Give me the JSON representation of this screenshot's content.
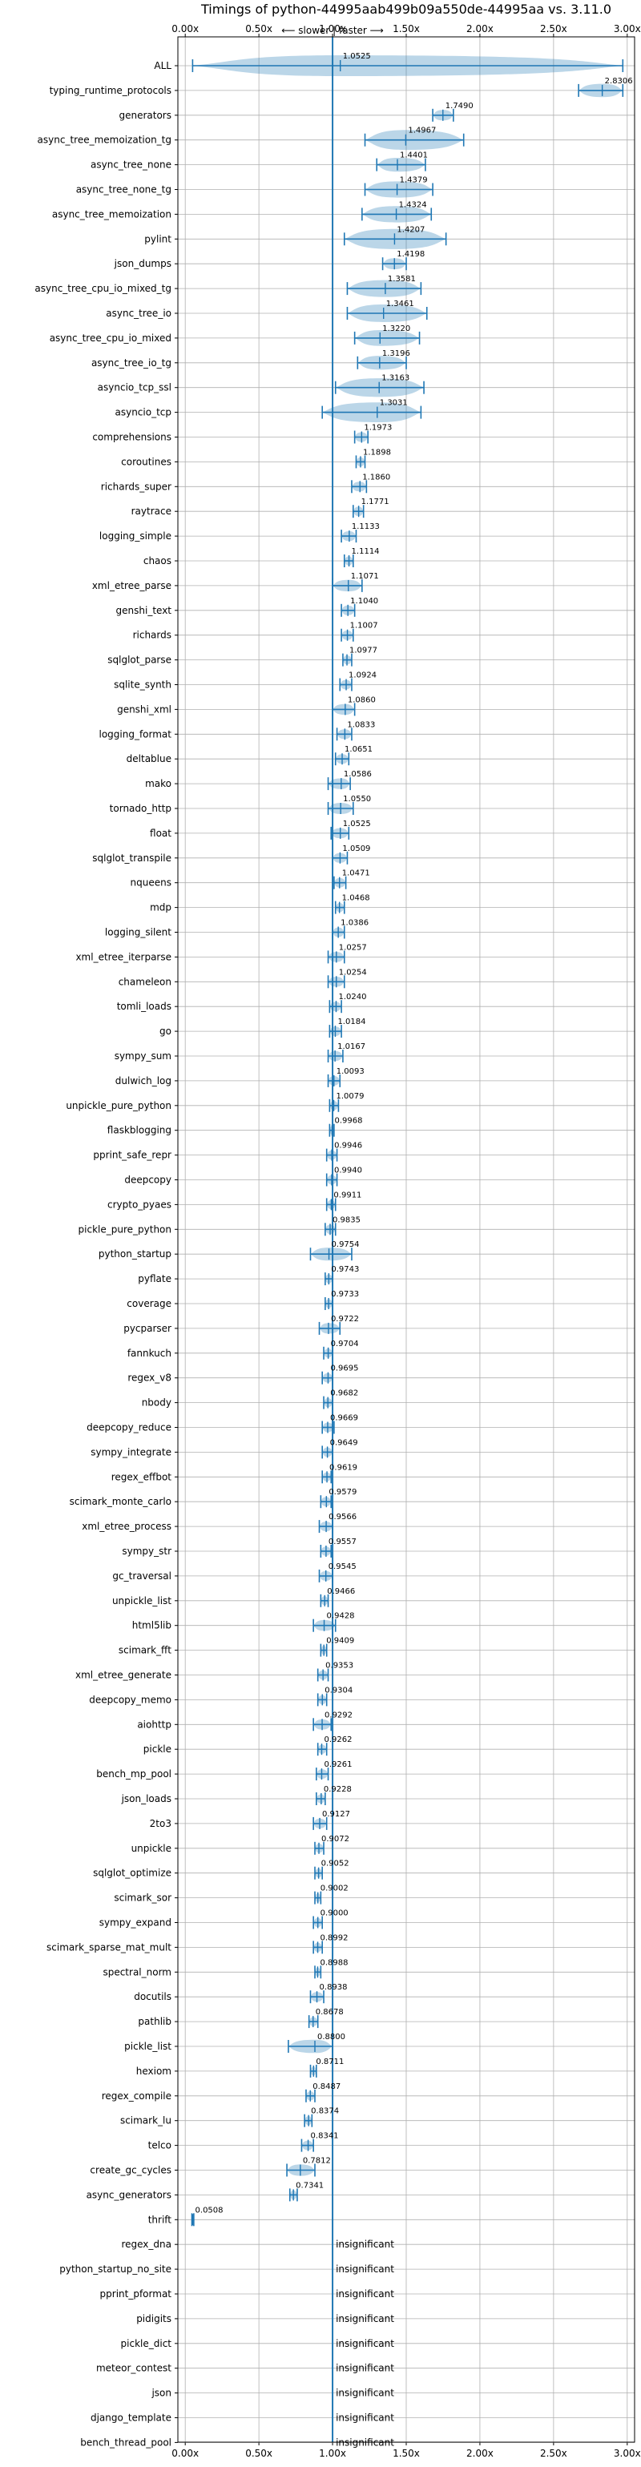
{
  "chart_data": {
    "type": "violin",
    "title": "Timings of python-44995aab499b09a550de-44995aa vs. 3.11.0",
    "direction_label": "⟵ slower | faster ⟶",
    "xlim": [
      -0.05,
      3.05
    ],
    "x_ticks": [
      0.0,
      0.5,
      1.0,
      1.5,
      2.0,
      2.5,
      3.0
    ],
    "x_tick_labels": [
      "0.00x",
      "0.50x",
      "1.00x",
      "1.50x",
      "2.00x",
      "2.50x",
      "3.00x"
    ],
    "grid": true,
    "reference_line": 1.0,
    "insignificant_label": "insignificant",
    "colors": {
      "violin": "#1f77b4",
      "median_line": "#1f77b4",
      "highlight": "#d62728"
    },
    "benchmarks": [
      {
        "name": "ALL",
        "value": 1.0525,
        "label": "1.0525",
        "lo": 0.05,
        "hi": 2.97
      },
      {
        "name": "typing_runtime_protocols",
        "value": 2.8306,
        "label": "2.8306",
        "lo": 2.67,
        "hi": 2.97
      },
      {
        "name": "generators",
        "value": 1.749,
        "label": "1.7490",
        "lo": 1.68,
        "hi": 1.82
      },
      {
        "name": "async_tree_memoization_tg",
        "value": 1.4967,
        "label": "1.4967",
        "lo": 1.22,
        "hi": 1.89
      },
      {
        "name": "async_tree_none",
        "value": 1.4401,
        "label": "1.4401",
        "lo": 1.3,
        "hi": 1.63
      },
      {
        "name": "async_tree_none_tg",
        "value": 1.4379,
        "label": "1.4379",
        "lo": 1.22,
        "hi": 1.68
      },
      {
        "name": "async_tree_memoization",
        "value": 1.4324,
        "label": "1.4324",
        "lo": 1.2,
        "hi": 1.67
      },
      {
        "name": "pylint",
        "value": 1.4207,
        "label": "1.4207",
        "lo": 1.08,
        "hi": 1.77
      },
      {
        "name": "json_dumps",
        "value": 1.4198,
        "label": "1.4198",
        "lo": 1.34,
        "hi": 1.5
      },
      {
        "name": "async_tree_cpu_io_mixed_tg",
        "value": 1.3581,
        "label": "1.3581",
        "lo": 1.1,
        "hi": 1.6
      },
      {
        "name": "async_tree_io",
        "value": 1.3461,
        "label": "1.3461",
        "lo": 1.1,
        "hi": 1.64
      },
      {
        "name": "async_tree_cpu_io_mixed",
        "value": 1.322,
        "label": "1.3220",
        "lo": 1.15,
        "hi": 1.59
      },
      {
        "name": "async_tree_io_tg",
        "value": 1.3196,
        "label": "1.3196",
        "lo": 1.17,
        "hi": 1.5
      },
      {
        "name": "asyncio_tcp_ssl",
        "value": 1.3163,
        "label": "1.3163",
        "lo": 1.02,
        "hi": 1.62
      },
      {
        "name": "asyncio_tcp",
        "value": 1.3031,
        "label": "1.3031",
        "lo": 0.93,
        "hi": 1.6
      },
      {
        "name": "comprehensions",
        "value": 1.1973,
        "label": "1.1973",
        "lo": 1.15,
        "hi": 1.24
      },
      {
        "name": "coroutines",
        "value": 1.1898,
        "label": "1.1898",
        "lo": 1.16,
        "hi": 1.22
      },
      {
        "name": "richards_super",
        "value": 1.186,
        "label": "1.1860",
        "lo": 1.13,
        "hi": 1.23
      },
      {
        "name": "raytrace",
        "value": 1.1771,
        "label": "1.1771",
        "lo": 1.14,
        "hi": 1.21
      },
      {
        "name": "logging_simple",
        "value": 1.1133,
        "label": "1.1133",
        "lo": 1.06,
        "hi": 1.16
      },
      {
        "name": "chaos",
        "value": 1.1114,
        "label": "1.1114",
        "lo": 1.08,
        "hi": 1.14
      },
      {
        "name": "xml_etree_parse",
        "value": 1.1071,
        "label": "1.1071",
        "lo": 1.0,
        "hi": 1.2
      },
      {
        "name": "genshi_text",
        "value": 1.104,
        "label": "1.1040",
        "lo": 1.06,
        "hi": 1.15
      },
      {
        "name": "richards",
        "value": 1.1007,
        "label": "1.1007",
        "lo": 1.06,
        "hi": 1.14
      },
      {
        "name": "sqlglot_parse",
        "value": 1.0977,
        "label": "1.0977",
        "lo": 1.07,
        "hi": 1.13
      },
      {
        "name": "sqlite_synth",
        "value": 1.0924,
        "label": "1.0924",
        "lo": 1.05,
        "hi": 1.13
      },
      {
        "name": "genshi_xml",
        "value": 1.086,
        "label": "1.0860",
        "lo": 1.0,
        "hi": 1.15
      },
      {
        "name": "logging_format",
        "value": 1.0833,
        "label": "1.0833",
        "lo": 1.03,
        "hi": 1.13
      },
      {
        "name": "deltablue",
        "value": 1.0651,
        "label": "1.0651",
        "lo": 1.02,
        "hi": 1.11
      },
      {
        "name": "mako",
        "value": 1.0586,
        "label": "1.0586",
        "lo": 0.97,
        "hi": 1.12
      },
      {
        "name": "tornado_http",
        "value": 1.055,
        "label": "1.0550",
        "lo": 0.97,
        "hi": 1.14
      },
      {
        "name": "float",
        "value": 1.0525,
        "label": "1.0525",
        "lo": 0.99,
        "hi": 1.11
      },
      {
        "name": "sqlglot_transpile",
        "value": 1.0509,
        "label": "1.0509",
        "lo": 1.0,
        "hi": 1.1
      },
      {
        "name": "nqueens",
        "value": 1.0471,
        "label": "1.0471",
        "lo": 1.01,
        "hi": 1.09
      },
      {
        "name": "mdp",
        "value": 1.0468,
        "label": "1.0468",
        "lo": 1.02,
        "hi": 1.08
      },
      {
        "name": "logging_silent",
        "value": 1.0386,
        "label": "1.0386",
        "lo": 1.0,
        "hi": 1.08
      },
      {
        "name": "xml_etree_iterparse",
        "value": 1.0257,
        "label": "1.0257",
        "lo": 0.97,
        "hi": 1.08
      },
      {
        "name": "chameleon",
        "value": 1.0254,
        "label": "1.0254",
        "lo": 0.97,
        "hi": 1.08
      },
      {
        "name": "tomli_loads",
        "value": 1.024,
        "label": "1.0240",
        "lo": 0.98,
        "hi": 1.06
      },
      {
        "name": "go",
        "value": 1.0184,
        "label": "1.0184",
        "lo": 0.98,
        "hi": 1.06
      },
      {
        "name": "sympy_sum",
        "value": 1.0167,
        "label": "1.0167",
        "lo": 0.97,
        "hi": 1.07
      },
      {
        "name": "dulwich_log",
        "value": 1.0093,
        "label": "1.0093",
        "lo": 0.97,
        "hi": 1.05
      },
      {
        "name": "unpickle_pure_python",
        "value": 1.0079,
        "label": "1.0079",
        "lo": 0.98,
        "hi": 1.04
      },
      {
        "name": "flaskblogging",
        "value": 0.9968,
        "label": "0.9968",
        "lo": 0.98,
        "hi": 1.01
      },
      {
        "name": "pprint_safe_repr",
        "value": 0.9946,
        "label": "0.9946",
        "lo": 0.96,
        "hi": 1.03
      },
      {
        "name": "deepcopy",
        "value": 0.994,
        "label": "0.9940",
        "lo": 0.96,
        "hi": 1.03
      },
      {
        "name": "crypto_pyaes",
        "value": 0.9911,
        "label": "0.9911",
        "lo": 0.96,
        "hi": 1.02
      },
      {
        "name": "pickle_pure_python",
        "value": 0.9835,
        "label": "0.9835",
        "lo": 0.95,
        "hi": 1.02
      },
      {
        "name": "python_startup",
        "value": 0.9754,
        "label": "0.9754",
        "lo": 0.85,
        "hi": 1.13
      },
      {
        "name": "pyflate",
        "value": 0.9743,
        "label": "0.9743",
        "lo": 0.95,
        "hi": 1.0
      },
      {
        "name": "coverage",
        "value": 0.9733,
        "label": "0.9733",
        "lo": 0.95,
        "hi": 1.0
      },
      {
        "name": "pycparser",
        "value": 0.9722,
        "label": "0.9722",
        "lo": 0.91,
        "hi": 1.05
      },
      {
        "name": "fannkuch",
        "value": 0.9704,
        "label": "0.9704",
        "lo": 0.94,
        "hi": 1.0
      },
      {
        "name": "regex_v8",
        "value": 0.9695,
        "label": "0.9695",
        "lo": 0.93,
        "hi": 1.0
      },
      {
        "name": "nbody",
        "value": 0.9682,
        "label": "0.9682",
        "lo": 0.94,
        "hi": 1.0
      },
      {
        "name": "deepcopy_reduce",
        "value": 0.9669,
        "label": "0.9669",
        "lo": 0.93,
        "hi": 1.01
      },
      {
        "name": "sympy_integrate",
        "value": 0.9649,
        "label": "0.9649",
        "lo": 0.93,
        "hi": 1.0
      },
      {
        "name": "regex_effbot",
        "value": 0.9619,
        "label": "0.9619",
        "lo": 0.93,
        "hi": 0.99
      },
      {
        "name": "scimark_monte_carlo",
        "value": 0.9579,
        "label": "0.9579",
        "lo": 0.92,
        "hi": 0.99
      },
      {
        "name": "xml_etree_process",
        "value": 0.9566,
        "label": "0.9566",
        "lo": 0.91,
        "hi": 1.0
      },
      {
        "name": "sympy_str",
        "value": 0.9557,
        "label": "0.9557",
        "lo": 0.92,
        "hi": 0.99
      },
      {
        "name": "gc_traversal",
        "value": 0.9545,
        "label": "0.9545",
        "lo": 0.91,
        "hi": 1.0
      },
      {
        "name": "unpickle_list",
        "value": 0.9466,
        "label": "0.9466",
        "lo": 0.92,
        "hi": 0.97
      },
      {
        "name": "html5lib",
        "value": 0.9428,
        "label": "0.9428",
        "lo": 0.87,
        "hi": 1.02
      },
      {
        "name": "scimark_fft",
        "value": 0.9409,
        "label": "0.9409",
        "lo": 0.92,
        "hi": 0.96
      },
      {
        "name": "xml_etree_generate",
        "value": 0.9353,
        "label": "0.9353",
        "lo": 0.9,
        "hi": 0.97
      },
      {
        "name": "deepcopy_memo",
        "value": 0.9304,
        "label": "0.9304",
        "lo": 0.9,
        "hi": 0.96
      },
      {
        "name": "aiohttp",
        "value": 0.9292,
        "label": "0.9292",
        "lo": 0.87,
        "hi": 0.99
      },
      {
        "name": "pickle",
        "value": 0.9262,
        "label": "0.9262",
        "lo": 0.9,
        "hi": 0.96
      },
      {
        "name": "bench_mp_pool",
        "value": 0.9261,
        "label": "0.9261",
        "lo": 0.89,
        "hi": 0.97
      },
      {
        "name": "json_loads",
        "value": 0.9228,
        "label": "0.9228",
        "lo": 0.89,
        "hi": 0.95
      },
      {
        "name": "2to3",
        "value": 0.9127,
        "label": "0.9127",
        "lo": 0.87,
        "hi": 0.96
      },
      {
        "name": "unpickle",
        "value": 0.9072,
        "label": "0.9072",
        "lo": 0.88,
        "hi": 0.94
      },
      {
        "name": "sqlglot_optimize",
        "value": 0.9052,
        "label": "0.9052",
        "lo": 0.88,
        "hi": 0.93
      },
      {
        "name": "scimark_sor",
        "value": 0.9002,
        "label": "0.9002",
        "lo": 0.88,
        "hi": 0.92
      },
      {
        "name": "sympy_expand",
        "value": 0.9,
        "label": "0.9000",
        "lo": 0.87,
        "hi": 0.93
      },
      {
        "name": "scimark_sparse_mat_mult",
        "value": 0.8992,
        "label": "0.8992",
        "lo": 0.87,
        "hi": 0.93
      },
      {
        "name": "spectral_norm",
        "value": 0.8988,
        "label": "0.8988",
        "lo": 0.88,
        "hi": 0.92
      },
      {
        "name": "docutils",
        "value": 0.8938,
        "label": "0.8938",
        "lo": 0.85,
        "hi": 0.94
      },
      {
        "name": "pathlib",
        "value": 0.8678,
        "label": "0.8678",
        "lo": 0.84,
        "hi": 0.9
      },
      {
        "name": "pickle_list",
        "value": 0.88,
        "label": "0.8800",
        "lo": 0.7,
        "hi": 1.0
      },
      {
        "name": "hexiom",
        "value": 0.8711,
        "label": "0.8711",
        "lo": 0.85,
        "hi": 0.89
      },
      {
        "name": "regex_compile",
        "value": 0.8487,
        "label": "0.8487",
        "lo": 0.82,
        "hi": 0.88
      },
      {
        "name": "scimark_lu",
        "value": 0.8374,
        "label": "0.8374",
        "lo": 0.81,
        "hi": 0.86
      },
      {
        "name": "telco",
        "value": 0.8341,
        "label": "0.8341",
        "lo": 0.79,
        "hi": 0.87
      },
      {
        "name": "create_gc_cycles",
        "value": 0.7812,
        "label": "0.7812",
        "lo": 0.69,
        "hi": 0.88
      },
      {
        "name": "async_generators",
        "value": 0.7341,
        "label": "0.7341",
        "lo": 0.71,
        "hi": 0.76
      },
      {
        "name": "thrift",
        "value": 0.0508,
        "label": "0.0508",
        "lo": 0.045,
        "hi": 0.058
      },
      {
        "name": "regex_dna",
        "value": null,
        "label": "insignificant"
      },
      {
        "name": "python_startup_no_site",
        "value": null,
        "label": "insignificant"
      },
      {
        "name": "pprint_pformat",
        "value": null,
        "label": "insignificant"
      },
      {
        "name": "pidigits",
        "value": null,
        "label": "insignificant"
      },
      {
        "name": "pickle_dict",
        "value": null,
        "label": "insignificant"
      },
      {
        "name": "meteor_contest",
        "value": null,
        "label": "insignificant"
      },
      {
        "name": "json",
        "value": null,
        "label": "insignificant"
      },
      {
        "name": "django_template",
        "value": null,
        "label": "insignificant"
      },
      {
        "name": "bench_thread_pool",
        "value": null,
        "label": "insignificant"
      }
    ]
  }
}
